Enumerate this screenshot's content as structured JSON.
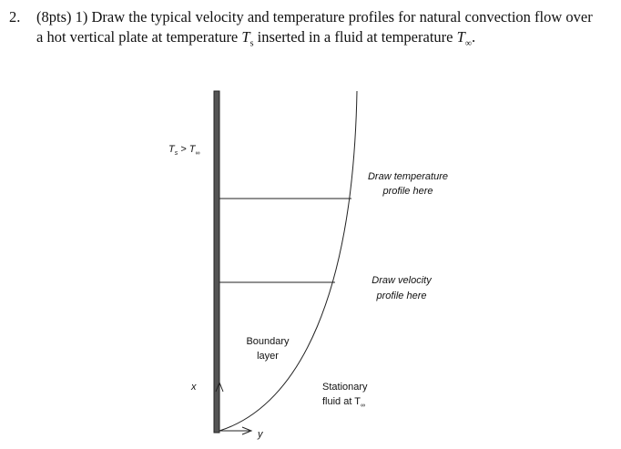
{
  "question": {
    "number": "2.",
    "parts": [
      "(8pts) 1) Draw the typical velocity and temperature profiles for natural convection flow over",
      "a hot vertical plate at temperature ",
      "T",
      "s",
      " inserted in a fluid at temperature ",
      "T",
      "∞",
      "."
    ]
  },
  "diagram": {
    "condition": [
      "T",
      "s",
      " > T",
      "∞"
    ],
    "temperature_note": [
      "Draw temperature",
      "profile here"
    ],
    "velocity_note": [
      "Draw velocity",
      "profile here"
    ],
    "boundary_label": [
      "Boundary",
      "layer"
    ],
    "x_axis": "x",
    "y_axis": "y",
    "fluid_label": [
      "Stationary",
      "fluid at T",
      "∞"
    ]
  }
}
